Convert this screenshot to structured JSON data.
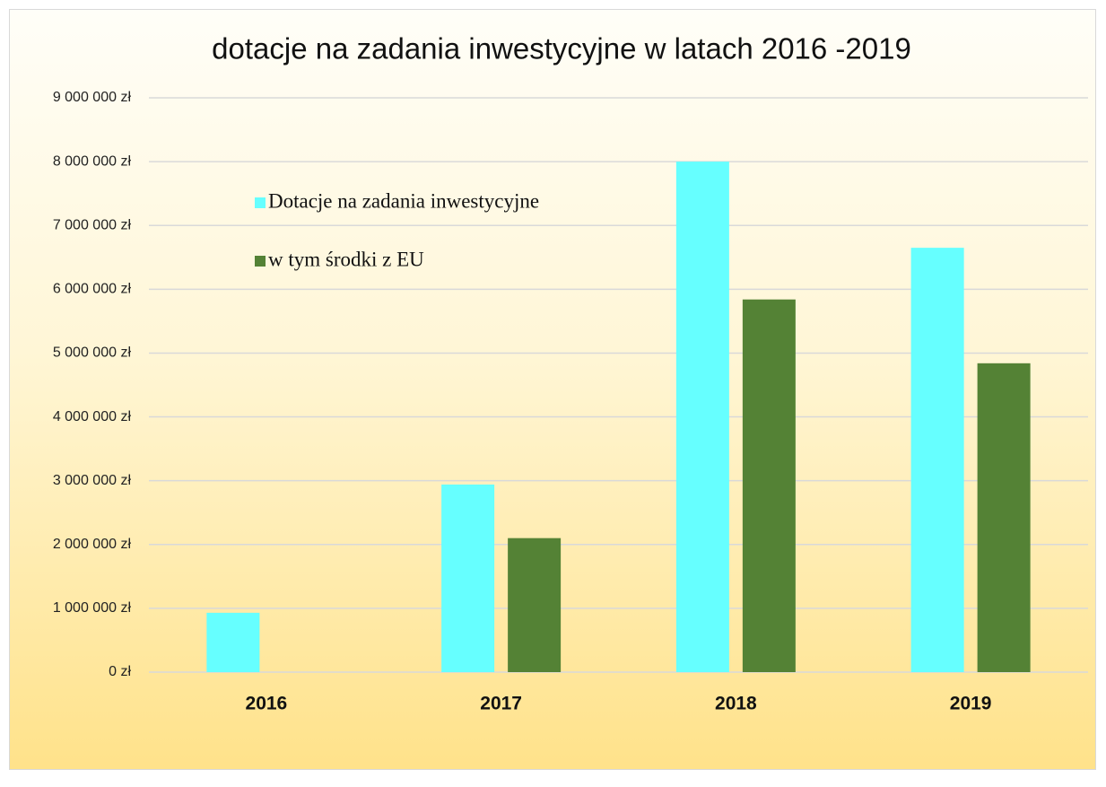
{
  "chart_data": {
    "type": "bar",
    "title": "dotacje na zadania inwestycyjne w latach 2016 -2019",
    "categories": [
      "2016",
      "2017",
      "2018",
      "2019"
    ],
    "series": [
      {
        "name": "Dotacje na zadania inwestycyjne",
        "color": "#66ffff",
        "values": [
          930000,
          2940000,
          8000000,
          6650000
        ]
      },
      {
        "name": "w tym środki z EU",
        "color": "#548235",
        "values": [
          0,
          2100000,
          5840000,
          4840000
        ]
      }
    ],
    "ylim": [
      0,
      9000000
    ],
    "yticks": [
      {
        "value": 0,
        "label": "0 zł"
      },
      {
        "value": 1000000,
        "label": "1 000 000 zł"
      },
      {
        "value": 2000000,
        "label": "2 000 000 zł"
      },
      {
        "value": 3000000,
        "label": "3 000 000 zł"
      },
      {
        "value": 4000000,
        "label": "4 000 000 zł"
      },
      {
        "value": 5000000,
        "label": "5 000 000 zł"
      },
      {
        "value": 6000000,
        "label": "6 000 000 zł"
      },
      {
        "value": 7000000,
        "label": "7 000 000 zł"
      },
      {
        "value": 8000000,
        "label": "8 000 000 zł"
      },
      {
        "value": 9000000,
        "label": "9 000 000 zł"
      }
    ],
    "grid": true,
    "legend": "upper left"
  }
}
